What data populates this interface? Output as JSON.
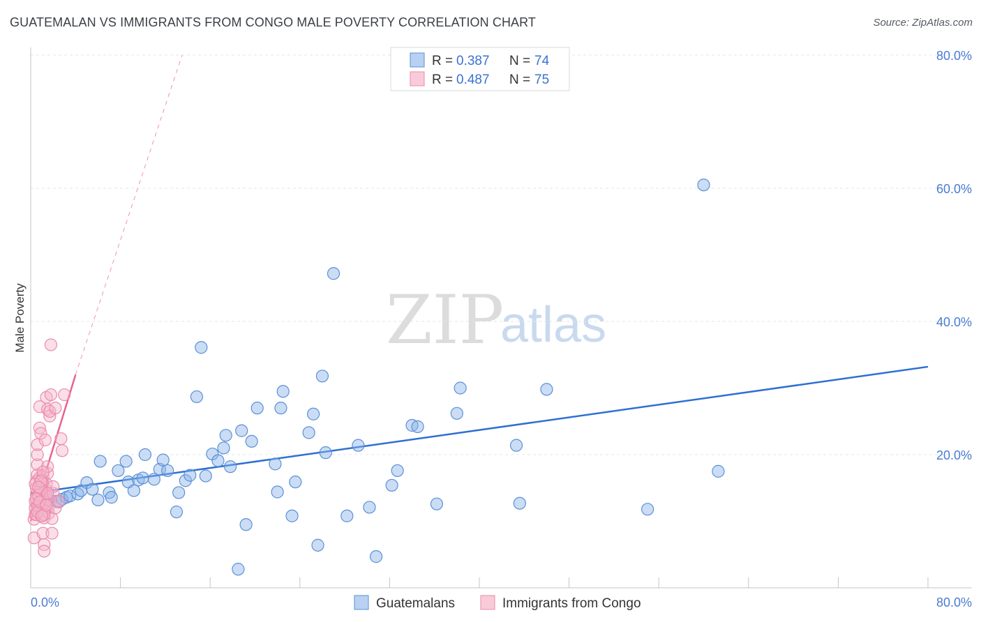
{
  "header": {
    "title": "GUATEMALAN VS IMMIGRANTS FROM CONGO MALE POVERTY CORRELATION CHART",
    "source": "Source: ZipAtlas.com"
  },
  "watermark": {
    "zip": "ZIP",
    "atlas": "atlas"
  },
  "chart_data": {
    "type": "scatter",
    "title": "GUATEMALAN VS IMMIGRANTS FROM CONGO MALE POVERTY CORRELATION CHART",
    "xlabel": "",
    "ylabel": "Male Poverty",
    "xlim": [
      0,
      80
    ],
    "ylim": [
      0,
      80
    ],
    "x_tick_labels": [
      "0.0%",
      "80.0%"
    ],
    "y_ticks": [
      20,
      40,
      60,
      80
    ],
    "y_tick_labels": [
      "20.0%",
      "40.0%",
      "60.0%",
      "80.0%"
    ],
    "grid": true,
    "legend": {
      "placement": "top-center",
      "entries": [
        {
          "r_label": "R =",
          "r_value": "0.387",
          "n_label": "N =",
          "n_value": "74"
        },
        {
          "r_label": "R =",
          "r_value": "0.487",
          "n_label": "N =",
          "n_value": "75"
        }
      ]
    },
    "series": [
      {
        "name": "Guatemalans",
        "color": "#8ab4e8",
        "edge": "#5b8fd6",
        "line_color": "#2e6fd3",
        "trend": {
          "x0": 0,
          "y0": 14.2,
          "x1": 80,
          "y1": 33.2,
          "style": "solid"
        },
        "points": [
          [
            0.8,
            12.5
          ],
          [
            1.0,
            13.0
          ],
          [
            1.2,
            12.8
          ],
          [
            1.5,
            13.2
          ],
          [
            1.8,
            13.1
          ],
          [
            2.2,
            13.0
          ],
          [
            2.5,
            12.9
          ],
          [
            2.8,
            13.3
          ],
          [
            3.2,
            13.6
          ],
          [
            3.5,
            13.8
          ],
          [
            4.2,
            14.1
          ],
          [
            4.5,
            14.6
          ],
          [
            5.0,
            15.8
          ],
          [
            5.5,
            14.8
          ],
          [
            6.2,
            19.0
          ],
          [
            6.0,
            13.2
          ],
          [
            7.0,
            14.3
          ],
          [
            7.2,
            13.6
          ],
          [
            7.8,
            17.6
          ],
          [
            8.5,
            19.0
          ],
          [
            8.7,
            15.9
          ],
          [
            9.2,
            14.6
          ],
          [
            9.6,
            16.2
          ],
          [
            10.2,
            20.0
          ],
          [
            10.0,
            16.5
          ],
          [
            11.0,
            16.3
          ],
          [
            11.5,
            17.8
          ],
          [
            11.8,
            19.2
          ],
          [
            12.2,
            17.6
          ],
          [
            13.0,
            11.4
          ],
          [
            13.2,
            14.3
          ],
          [
            13.8,
            16.1
          ],
          [
            14.2,
            16.9
          ],
          [
            14.8,
            28.7
          ],
          [
            15.2,
            36.1
          ],
          [
            15.6,
            16.8
          ],
          [
            16.2,
            20.1
          ],
          [
            16.7,
            19.1
          ],
          [
            17.2,
            21.0
          ],
          [
            17.4,
            22.9
          ],
          [
            17.8,
            18.2
          ],
          [
            18.5,
            2.8
          ],
          [
            18.8,
            23.6
          ],
          [
            19.2,
            9.5
          ],
          [
            19.7,
            22.0
          ],
          [
            20.2,
            27.0
          ],
          [
            21.8,
            18.6
          ],
          [
            22.0,
            14.4
          ],
          [
            22.3,
            27.0
          ],
          [
            22.5,
            29.5
          ],
          [
            23.3,
            10.8
          ],
          [
            23.6,
            15.9
          ],
          [
            24.8,
            23.3
          ],
          [
            25.2,
            26.1
          ],
          [
            25.6,
            6.4
          ],
          [
            26.0,
            31.8
          ],
          [
            26.3,
            20.3
          ],
          [
            28.2,
            10.8
          ],
          [
            29.2,
            21.4
          ],
          [
            30.2,
            12.1
          ],
          [
            30.8,
            4.7
          ],
          [
            32.2,
            15.4
          ],
          [
            32.7,
            17.6
          ],
          [
            34.0,
            24.4
          ],
          [
            34.5,
            24.2
          ],
          [
            36.2,
            12.6
          ],
          [
            38.0,
            26.2
          ],
          [
            38.3,
            30.0
          ],
          [
            43.3,
            21.4
          ],
          [
            43.6,
            12.7
          ],
          [
            46.0,
            29.8
          ],
          [
            55.0,
            11.8
          ],
          [
            60.0,
            60.5
          ],
          [
            61.3,
            17.5
          ],
          [
            27.0,
            47.2
          ]
        ]
      },
      {
        "name": "Immigrants from Congo",
        "color": "#f5b8cb",
        "edge": "#ec8aab",
        "line_color": "#e8628e",
        "trend": {
          "x0": 0,
          "y0": 10.0,
          "x1": 4.0,
          "y1": 32.0,
          "style": "solid",
          "ext_x1": 13.5,
          "ext_y1": 80.0
        },
        "points": [
          [
            0.3,
            7.5
          ],
          [
            0.3,
            10.3
          ],
          [
            0.4,
            11.0
          ],
          [
            0.4,
            12.0
          ],
          [
            0.4,
            13.0
          ],
          [
            0.5,
            14.0
          ],
          [
            0.5,
            15.0
          ],
          [
            0.5,
            16.0
          ],
          [
            0.6,
            17.0
          ],
          [
            0.6,
            18.5
          ],
          [
            0.6,
            20.0
          ],
          [
            0.6,
            21.5
          ],
          [
            0.7,
            11.5
          ],
          [
            0.7,
            12.5
          ],
          [
            0.7,
            13.5
          ],
          [
            0.8,
            14.5
          ],
          [
            0.8,
            15.5
          ],
          [
            0.8,
            16.5
          ],
          [
            0.8,
            24.0
          ],
          [
            0.8,
            27.2
          ],
          [
            0.9,
            23.2
          ],
          [
            0.9,
            10.8
          ],
          [
            1.0,
            11.8
          ],
          [
            1.0,
            12.8
          ],
          [
            1.0,
            13.8
          ],
          [
            1.0,
            14.8
          ],
          [
            1.1,
            15.8
          ],
          [
            1.1,
            16.8
          ],
          [
            1.1,
            8.2
          ],
          [
            1.2,
            6.5
          ],
          [
            1.2,
            5.5
          ],
          [
            1.2,
            10.5
          ],
          [
            1.3,
            11.6
          ],
          [
            1.3,
            12.6
          ],
          [
            1.3,
            13.6
          ],
          [
            1.3,
            22.2
          ],
          [
            1.4,
            14.6
          ],
          [
            1.4,
            15.6
          ],
          [
            1.4,
            28.6
          ],
          [
            1.5,
            17.2
          ],
          [
            1.5,
            18.2
          ],
          [
            1.5,
            26.8
          ],
          [
            1.6,
            11.2
          ],
          [
            1.6,
            12.2
          ],
          [
            1.6,
            13.2
          ],
          [
            1.7,
            25.8
          ],
          [
            1.7,
            26.5
          ],
          [
            1.8,
            29.0
          ],
          [
            1.8,
            36.5
          ],
          [
            1.9,
            10.4
          ],
          [
            1.9,
            8.2
          ],
          [
            2.0,
            14.2
          ],
          [
            2.0,
            15.2
          ],
          [
            2.2,
            27.0
          ],
          [
            2.2,
            12.0
          ],
          [
            2.5,
            13.0
          ],
          [
            2.7,
            22.4
          ],
          [
            2.8,
            20.6
          ],
          [
            3.0,
            29.0
          ],
          [
            0.5,
            11.0
          ],
          [
            0.6,
            12.3
          ],
          [
            0.7,
            13.9
          ],
          [
            0.9,
            14.9
          ],
          [
            1.0,
            16.2
          ],
          [
            1.1,
            17.4
          ],
          [
            0.4,
            15.6
          ],
          [
            0.5,
            13.4
          ],
          [
            0.6,
            11.4
          ],
          [
            0.8,
            12.9
          ],
          [
            1.2,
            11.0
          ],
          [
            1.4,
            12.4
          ],
          [
            1.5,
            14.2
          ],
          [
            0.9,
            16.0
          ],
          [
            1.0,
            10.8
          ],
          [
            0.7,
            15.1
          ]
        ]
      }
    ]
  },
  "bottom_legend": [
    {
      "label": "Guatemalans"
    },
    {
      "label": "Immigrants from Congo"
    }
  ]
}
